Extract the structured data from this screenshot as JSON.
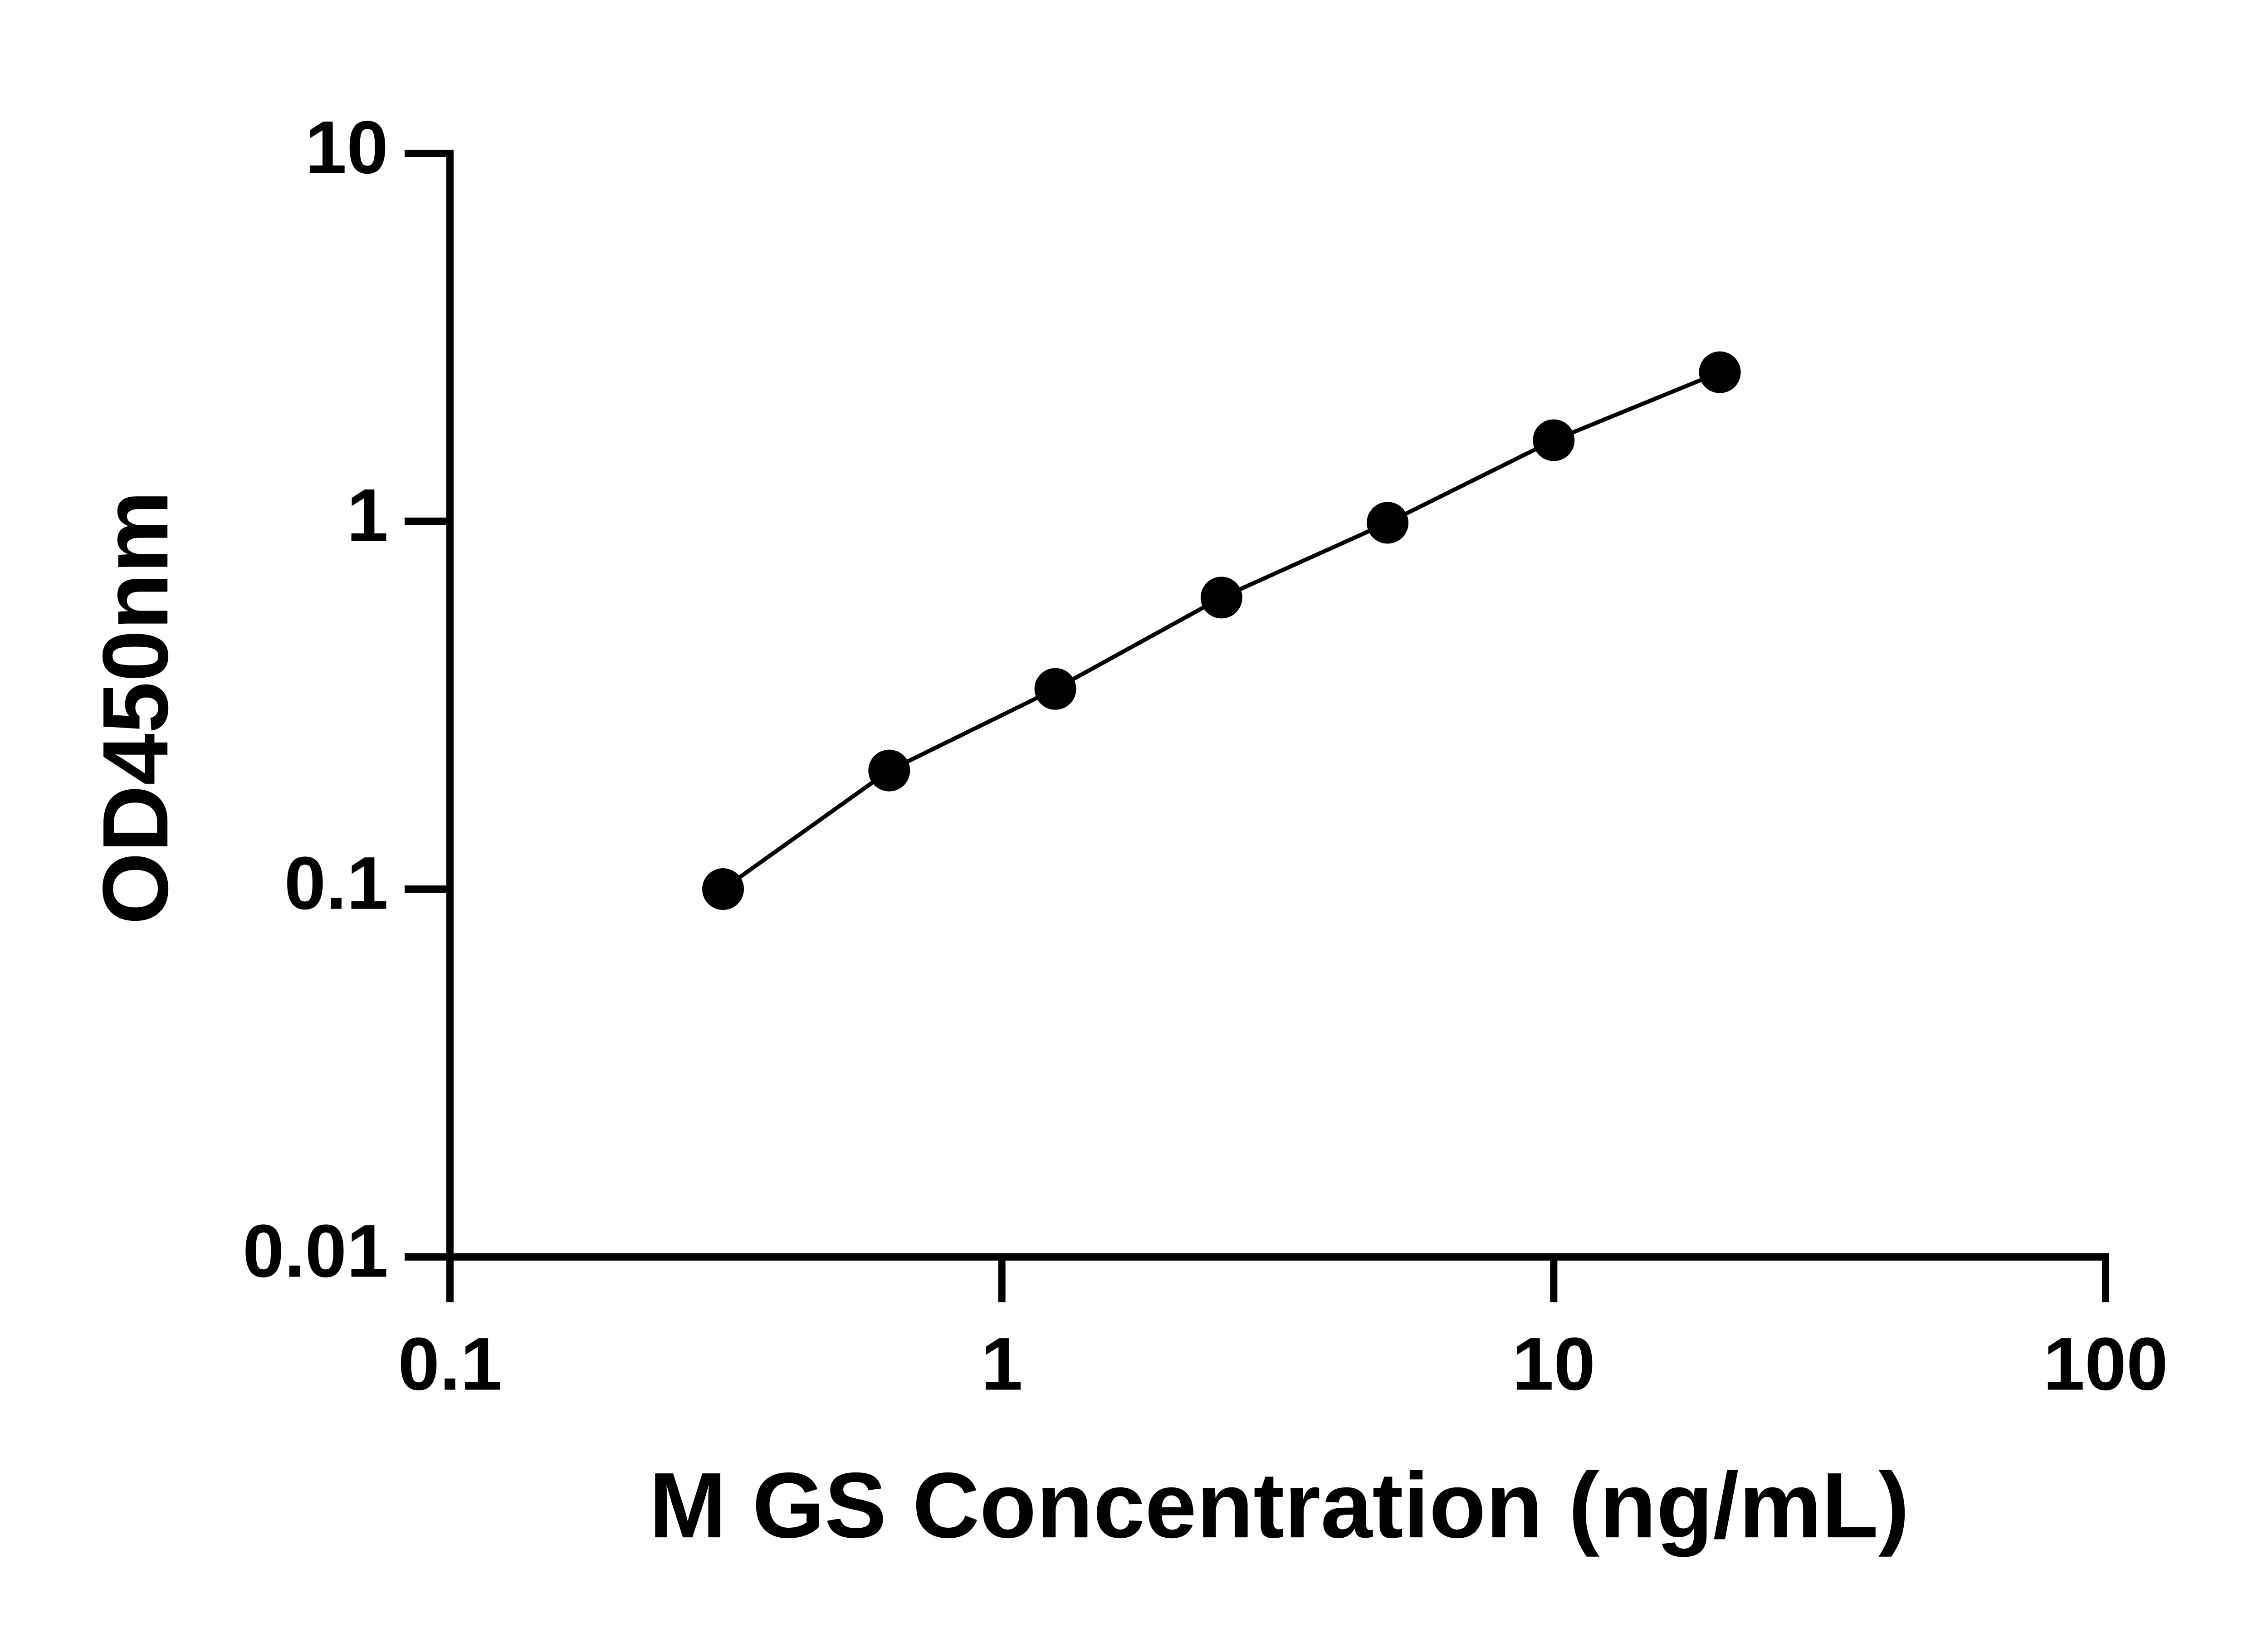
{
  "chart_data": {
    "type": "line",
    "x_label": "M GS Concentration (ng/mL)",
    "y_label": "OD450nm",
    "x": [
      0.3125,
      0.625,
      1.25,
      2.5,
      5,
      10,
      20
    ],
    "series": [
      {
        "color": "#000000",
        "values": [
          0.1,
          0.21,
          0.35,
          0.62,
          0.99,
          1.66,
          2.54
        ]
      }
    ],
    "markers": true,
    "xscale": "log",
    "yscale": "log",
    "xlim": [
      0.1,
      100
    ],
    "xticks": [
      0.1,
      1,
      10,
      100
    ],
    "ylim": [
      0.01,
      10
    ],
    "yticks": [
      0.01,
      0.1,
      1,
      10
    ]
  }
}
